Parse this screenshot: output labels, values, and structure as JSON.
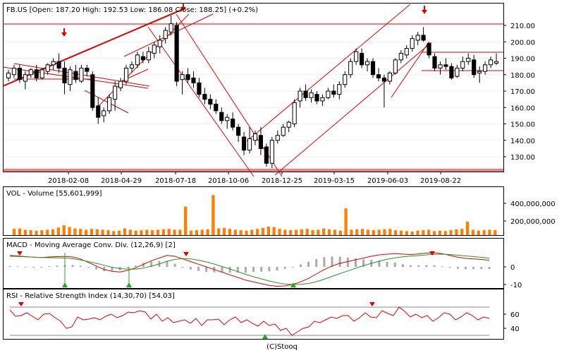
{
  "credit": "(C)Stooq",
  "colors": {
    "up_fill": "#ffffff",
    "down_fill": "#000000",
    "candle_stroke": "#000000",
    "trendline": "#e00000",
    "arrow": "#e00000",
    "volume_bar": "#ff7f00",
    "macd_line": "#e00000",
    "signal_line": "#229922",
    "histogram": "#aaaaaa",
    "rsi_line": "#e00000",
    "green_marker": "#22aa22",
    "grid": "#000000"
  },
  "chart_data": [
    {
      "type": "candlestick",
      "title": "FB.US [Open: 187.20  High: 192.53  Low: 186.08  Close: 188.25] (+0.2%)",
      "x_tick_labels": [
        "2018-02-08",
        "2018-04-29",
        "2018-07-18",
        "2018-10-06",
        "2018-12-25",
        "2019-03-15",
        "2019-06-03",
        "2019-08-22"
      ],
      "y_tick_labels": [
        "130.00",
        "140.00",
        "150.00",
        "160.00",
        "170.00",
        "180.00",
        "190.00",
        "200.00",
        "210.00"
      ],
      "ylim": [
        120,
        215
      ],
      "candles": [
        {
          "o": 178,
          "h": 183,
          "l": 176,
          "c": 181
        },
        {
          "o": 180,
          "h": 186,
          "l": 178,
          "c": 184
        },
        {
          "o": 184,
          "h": 186,
          "l": 175,
          "c": 177
        },
        {
          "o": 176,
          "h": 182,
          "l": 171,
          "c": 180
        },
        {
          "o": 180,
          "h": 184,
          "l": 178,
          "c": 183
        },
        {
          "o": 183,
          "h": 186,
          "l": 176,
          "c": 178
        },
        {
          "o": 178,
          "h": 184,
          "l": 177,
          "c": 183
        },
        {
          "o": 182,
          "h": 187,
          "l": 180,
          "c": 186
        },
        {
          "o": 186,
          "h": 190,
          "l": 183,
          "c": 188
        },
        {
          "o": 188,
          "h": 193,
          "l": 181,
          "c": 184
        },
        {
          "o": 184,
          "h": 188,
          "l": 168,
          "c": 175
        },
        {
          "o": 174,
          "h": 185,
          "l": 170,
          "c": 183
        },
        {
          "o": 182,
          "h": 186,
          "l": 175,
          "c": 177
        },
        {
          "o": 176,
          "h": 186,
          "l": 175,
          "c": 184
        },
        {
          "o": 184,
          "h": 186,
          "l": 179,
          "c": 182
        },
        {
          "o": 180,
          "h": 182,
          "l": 158,
          "c": 160
        },
        {
          "o": 161,
          "h": 166,
          "l": 150,
          "c": 154
        },
        {
          "o": 155,
          "h": 160,
          "l": 151,
          "c": 158
        },
        {
          "o": 158,
          "h": 168,
          "l": 156,
          "c": 166
        },
        {
          "o": 165,
          "h": 176,
          "l": 158,
          "c": 173
        },
        {
          "o": 172,
          "h": 178,
          "l": 170,
          "c": 176
        },
        {
          "o": 176,
          "h": 186,
          "l": 174,
          "c": 184
        },
        {
          "o": 184,
          "h": 188,
          "l": 181,
          "c": 186
        },
        {
          "o": 186,
          "h": 194,
          "l": 184,
          "c": 192
        },
        {
          "o": 191,
          "h": 194,
          "l": 187,
          "c": 189
        },
        {
          "o": 189,
          "h": 197,
          "l": 187,
          "c": 194
        },
        {
          "o": 193,
          "h": 200,
          "l": 190,
          "c": 198
        },
        {
          "o": 197,
          "h": 204,
          "l": 193,
          "c": 201
        },
        {
          "o": 202,
          "h": 209,
          "l": 199,
          "c": 207
        },
        {
          "o": 206,
          "h": 216,
          "l": 204,
          "c": 211
        },
        {
          "o": 210,
          "h": 212,
          "l": 173,
          "c": 176
        },
        {
          "o": 177,
          "h": 182,
          "l": 168,
          "c": 180
        },
        {
          "o": 180,
          "h": 184,
          "l": 175,
          "c": 177
        },
        {
          "o": 178,
          "h": 182,
          "l": 172,
          "c": 175
        },
        {
          "o": 175,
          "h": 178,
          "l": 166,
          "c": 168
        },
        {
          "o": 168,
          "h": 172,
          "l": 162,
          "c": 165
        },
        {
          "o": 165,
          "h": 168,
          "l": 159,
          "c": 162
        },
        {
          "o": 162,
          "h": 165,
          "l": 156,
          "c": 158
        },
        {
          "o": 157,
          "h": 160,
          "l": 150,
          "c": 152
        },
        {
          "o": 152,
          "h": 156,
          "l": 147,
          "c": 154
        },
        {
          "o": 153,
          "h": 157,
          "l": 146,
          "c": 148
        },
        {
          "o": 148,
          "h": 150,
          "l": 139,
          "c": 143
        },
        {
          "o": 142,
          "h": 145,
          "l": 131,
          "c": 134
        },
        {
          "o": 134,
          "h": 148,
          "l": 132,
          "c": 141
        },
        {
          "o": 140,
          "h": 146,
          "l": 137,
          "c": 144
        },
        {
          "o": 143,
          "h": 148,
          "l": 131,
          "c": 135
        },
        {
          "o": 136,
          "h": 138,
          "l": 124,
          "c": 126
        },
        {
          "o": 126,
          "h": 142,
          "l": 123,
          "c": 140
        },
        {
          "o": 140,
          "h": 146,
          "l": 138,
          "c": 143
        },
        {
          "o": 143,
          "h": 150,
          "l": 142,
          "c": 148
        },
        {
          "o": 148,
          "h": 152,
          "l": 145,
          "c": 151
        },
        {
          "o": 150,
          "h": 165,
          "l": 148,
          "c": 163
        },
        {
          "o": 164,
          "h": 172,
          "l": 160,
          "c": 170
        },
        {
          "o": 170,
          "h": 174,
          "l": 164,
          "c": 166
        },
        {
          "o": 166,
          "h": 171,
          "l": 163,
          "c": 169
        },
        {
          "o": 168,
          "h": 170,
          "l": 162,
          "c": 164
        },
        {
          "o": 164,
          "h": 168,
          "l": 161,
          "c": 166
        },
        {
          "o": 166,
          "h": 172,
          "l": 165,
          "c": 170
        },
        {
          "o": 170,
          "h": 174,
          "l": 166,
          "c": 168
        },
        {
          "o": 168,
          "h": 176,
          "l": 165,
          "c": 174
        },
        {
          "o": 174,
          "h": 182,
          "l": 172,
          "c": 180
        },
        {
          "o": 180,
          "h": 190,
          "l": 178,
          "c": 188
        },
        {
          "o": 188,
          "h": 196,
          "l": 186,
          "c": 194
        },
        {
          "o": 193,
          "h": 196,
          "l": 184,
          "c": 186
        },
        {
          "o": 186,
          "h": 190,
          "l": 182,
          "c": 188
        },
        {
          "o": 188,
          "h": 190,
          "l": 178,
          "c": 180
        },
        {
          "o": 180,
          "h": 184,
          "l": 176,
          "c": 178
        },
        {
          "o": 178,
          "h": 180,
          "l": 160,
          "c": 176
        },
        {
          "o": 176,
          "h": 182,
          "l": 174,
          "c": 181
        },
        {
          "o": 181,
          "h": 190,
          "l": 180,
          "c": 189
        },
        {
          "o": 189,
          "h": 195,
          "l": 187,
          "c": 193
        },
        {
          "o": 192,
          "h": 198,
          "l": 190,
          "c": 196
        },
        {
          "o": 196,
          "h": 204,
          "l": 194,
          "c": 202
        },
        {
          "o": 201,
          "h": 206,
          "l": 198,
          "c": 204
        },
        {
          "o": 204,
          "h": 209,
          "l": 200,
          "c": 201
        },
        {
          "o": 199,
          "h": 200,
          "l": 190,
          "c": 192
        },
        {
          "o": 191,
          "h": 193,
          "l": 182,
          "c": 184
        },
        {
          "o": 184,
          "h": 188,
          "l": 180,
          "c": 186
        },
        {
          "o": 186,
          "h": 190,
          "l": 183,
          "c": 185
        },
        {
          "o": 185,
          "h": 187,
          "l": 177,
          "c": 178
        },
        {
          "o": 179,
          "h": 186,
          "l": 178,
          "c": 184
        },
        {
          "o": 184,
          "h": 191,
          "l": 182,
          "c": 188
        },
        {
          "o": 188,
          "h": 193,
          "l": 186,
          "c": 190
        },
        {
          "o": 189,
          "h": 192,
          "l": 178,
          "c": 180
        },
        {
          "o": 181,
          "h": 185,
          "l": 175,
          "c": 182
        },
        {
          "o": 182,
          "h": 188,
          "l": 180,
          "c": 186
        },
        {
          "o": 186,
          "h": 191,
          "l": 184,
          "c": 189
        },
        {
          "o": 187,
          "h": 193,
          "l": 186,
          "c": 188
        }
      ]
    },
    {
      "type": "bar",
      "title": "VOL - Volume [55,601,999]",
      "y_tick_labels": [
        "400,000,000",
        "200,000,000"
      ],
      "ylim": [
        0,
        500000000
      ],
      "values": [
        70,
        75,
        60,
        55,
        50,
        55,
        60,
        65,
        85,
        110,
        90,
        75,
        70,
        60,
        70,
        65,
        60,
        55,
        45,
        50,
        75,
        60,
        50,
        55,
        60,
        55,
        60,
        65,
        70,
        60,
        60,
        55,
        50,
        55,
        60,
        65,
        70,
        75,
        80,
        70,
        60,
        55,
        50,
        60,
        70,
        80,
        95,
        90,
        70,
        60,
        55,
        60,
        65,
        70,
        55,
        60,
        75,
        65,
        60,
        50,
        55,
        60,
        65,
        70,
        60,
        55,
        60,
        65,
        70,
        55,
        50,
        45,
        40,
        50,
        55,
        60,
        45,
        50,
        45,
        55,
        65,
        70,
        55,
        60,
        50,
        55,
        60,
        55
      ],
      "spike_values": [
        {
          "i": 31,
          "v": 320
        },
        {
          "i": 36,
          "v": 450
        },
        {
          "i": 60,
          "v": 300
        },
        {
          "i": 82,
          "v": 150
        }
      ]
    },
    {
      "type": "line",
      "title": "MACD - Moving Average Conv. Div. (12,26,9) [2]",
      "y_tick_labels": [
        "0",
        "-10"
      ],
      "ylim": [
        -12,
        9
      ],
      "series": [
        {
          "values": [
            6.5,
            6.2,
            5.8,
            5.5,
            5.3,
            5.6,
            5.8,
            5.9,
            5.6,
            4.5,
            2.5,
            0.5,
            -1.5,
            -2.5,
            -2.9,
            -2.0,
            -0.5,
            1.5,
            3.5,
            5.0,
            6.5,
            6.0,
            4.5,
            3.0,
            1.5,
            0.0,
            -1.5,
            -3.0,
            -4.5,
            -6.0,
            -7.5,
            -8.5,
            -9.5,
            -10.5,
            -11.0,
            -10.8,
            -10.0,
            -8.5,
            -6.5,
            -4.0,
            -1.5,
            0.5,
            2.0,
            3.0,
            4.0,
            5.0,
            6.0,
            6.8,
            7.2,
            7.5,
            7.2,
            7.0,
            7.3,
            7.8,
            8.0,
            7.5,
            6.5,
            5.5,
            4.8,
            4.5,
            4.2,
            3.8
          ]
        },
        {
          "values": [
            6.0,
            5.9,
            5.7,
            5.5,
            5.3,
            5.2,
            5.1,
            5.0,
            4.6,
            3.9,
            3.0,
            2.0,
            0.9,
            -0.2,
            -1.0,
            -1.3,
            -1.3,
            -0.7,
            0.4,
            1.6,
            3.2,
            4.2,
            4.7,
            4.5,
            3.8,
            2.8,
            1.6,
            0.2,
            -1.2,
            -2.7,
            -4.2,
            -5.6,
            -6.8,
            -8.0,
            -9.0,
            -9.7,
            -10.0,
            -9.9,
            -9.4,
            -8.4,
            -7.0,
            -5.4,
            -3.8,
            -2.3,
            -0.8,
            0.7,
            2.0,
            3.2,
            4.3,
            5.1,
            5.7,
            6.1,
            6.4,
            6.8,
            7.1,
            7.2,
            7.0,
            6.6,
            6.2,
            5.8,
            5.4,
            5.0
          ]
        }
      ],
      "histogram": [
        0.5,
        0.3,
        0.1,
        0,
        0,
        0.4,
        0.7,
        0.9,
        1.0,
        0.6,
        -0.5,
        -1.5,
        -2.4,
        -2.3,
        -1.9,
        -0.7,
        0.8,
        2.2,
        3.1,
        3.4,
        3.3,
        1.8,
        -0.2,
        -1.5,
        -2.3,
        -2.8,
        -3.1,
        -3.2,
        -3.3,
        -3.3,
        -3.3,
        -2.9,
        -2.7,
        -2.5,
        -2.0,
        -1.1,
        0,
        1.4,
        2.9,
        4.4,
        5.5,
        5.9,
        5.8,
        5.3,
        4.8,
        4.3,
        4.0,
        3.6,
        2.9,
        2.4,
        1.5,
        0.9,
        0.9,
        1.0,
        0.9,
        0.3,
        -0.5,
        -1.1,
        -1.4,
        -1.3,
        -1.2,
        -1.2
      ]
    },
    {
      "type": "line",
      "title": "RSI - Relative Strength Index (14,30,70) [54.03]",
      "y_tick_labels": [
        "60",
        "40"
      ],
      "ylim": [
        28,
        75
      ],
      "series": [
        {
          "values": [
            66,
            57,
            58,
            62,
            57,
            52,
            60,
            61,
            55,
            50,
            40,
            42,
            56,
            52,
            53,
            55,
            52,
            57,
            60,
            55,
            58,
            63,
            62,
            65,
            63,
            53,
            60,
            50,
            55,
            48,
            50,
            52,
            47,
            54,
            44,
            52,
            52,
            53,
            45,
            52,
            56,
            48,
            52,
            47,
            43,
            50,
            44,
            46,
            37,
            40,
            30,
            35,
            40,
            42,
            50,
            48,
            52,
            56,
            54,
            58,
            58,
            50,
            55,
            62,
            56,
            55,
            65,
            61,
            58,
            70,
            64,
            56,
            60,
            55,
            58,
            50,
            55,
            62,
            60,
            52,
            56,
            62,
            58,
            52,
            56,
            54
          ]
        }
      ]
    }
  ]
}
